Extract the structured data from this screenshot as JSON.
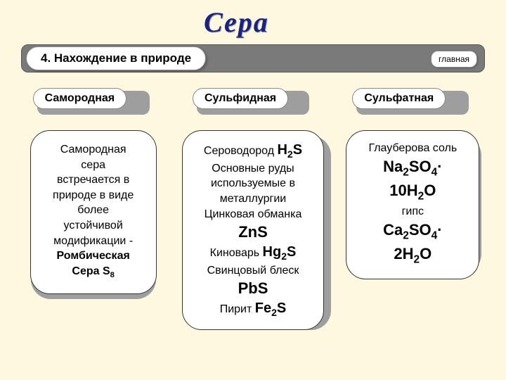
{
  "colors": {
    "page_bg": "#fff8e1",
    "bar_bg": "#7a7a7a",
    "shadow_bg": "#9e9e9e",
    "card_bg": "#ffffff",
    "title_color": "#1a237e",
    "text_color": "#000000"
  },
  "title": "Сера",
  "head_label": "4. Нахождение в природе",
  "nav_label": "главная",
  "columns": [
    {
      "category": "Самородная",
      "lines": [
        {
          "text": "Самородная"
        },
        {
          "text": "сера"
        },
        {
          "text": "встречается в"
        },
        {
          "text": "природе в виде"
        },
        {
          "text": "более"
        },
        {
          "text": "устойчивой"
        },
        {
          "text": "модификации -"
        },
        {
          "text": "Ромбическая",
          "style": "bold"
        },
        {
          "formula": "Сера S₈",
          "style": "bold"
        }
      ]
    },
    {
      "category": "Сульфидная",
      "lines": [
        {
          "inline": [
            {
              "text": "Сероводород  "
            },
            {
              "formula": "H₂S",
              "style": "big"
            }
          ]
        },
        {
          "text": "Основные руды"
        },
        {
          "text": "используемые в"
        },
        {
          "text": "металлургии"
        },
        {
          "text": "Цинковая обманка"
        },
        {
          "formula": "ZnS",
          "style": "big2"
        },
        {
          "inline": [
            {
              "text": "Киноварь "
            },
            {
              "formula": "Hg₂S",
              "style": "big"
            }
          ]
        },
        {
          "text": "Свинцовый блеск"
        },
        {
          "formula": "PbS",
          "style": "big2"
        },
        {
          "inline": [
            {
              "text": "Пирит  "
            },
            {
              "formula": "Fe₂S",
              "style": "big"
            }
          ]
        }
      ]
    },
    {
      "category": "Сульфатная",
      "lines": [
        {
          "text": "Глауберова соль"
        },
        {
          "formula": "Na₂SO₄·",
          "style": "big2"
        },
        {
          "formula": "10H₂O",
          "style": "big2"
        },
        {
          "text": " "
        },
        {
          "text": "гипс"
        },
        {
          "formula": "Ca₂SO₄·",
          "style": "big2"
        },
        {
          "formula": "2H₂O",
          "style": "big2"
        }
      ]
    }
  ]
}
